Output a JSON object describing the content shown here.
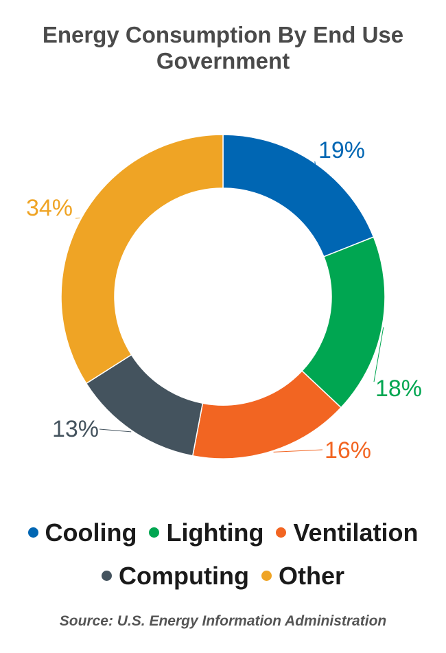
{
  "chart_data": {
    "type": "donut",
    "title_lines": [
      "Energy Consumption By End Use",
      "Government"
    ],
    "series": [
      {
        "name": "Cooling",
        "value": 19,
        "label": "19%",
        "color": "#0066b3"
      },
      {
        "name": "Lighting",
        "value": 18,
        "label": "18%",
        "color": "#00a651"
      },
      {
        "name": "Ventilation",
        "value": 16,
        "label": "16%",
        "color": "#f26522"
      },
      {
        "name": "Computing",
        "value": 13,
        "label": "13%",
        "color": "#44535e"
      },
      {
        "name": "Other",
        "value": 34,
        "label": "34%",
        "color": "#efa425"
      }
    ],
    "legend_placement": "bottom",
    "source": "Source: U.S. Energy Information Administration"
  }
}
